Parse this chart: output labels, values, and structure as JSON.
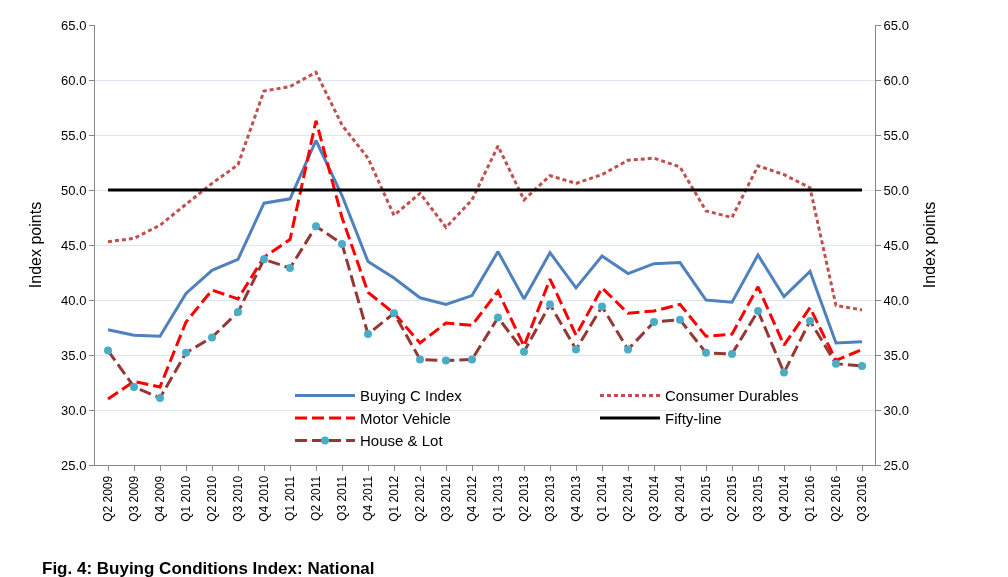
{
  "chart_data": {
    "type": "line",
    "annotations": [
      "Fig. 4: Buying Conditions Index: National"
    ],
    "ylabel": "Index points",
    "y2label": "Index points",
    "categories": [
      "Q2 2009",
      "Q3 2009",
      "Q4 2009",
      "Q1 2010",
      "Q2 2010",
      "Q3 2010",
      "Q4 2010",
      "Q1 2011",
      "Q2 2011",
      "Q3 2011",
      "Q4 2011",
      "Q1 2012",
      "Q2 2012",
      "Q3 2012",
      "Q4 2012",
      "Q1 2013",
      "Q2 2013",
      "Q3 2013",
      "Q4 2013",
      "Q1 2014",
      "Q2 2014",
      "Q3 2014",
      "Q4 2014",
      "Q1 2015",
      "Q2 2015",
      "Q3 2015",
      "Q4 2014",
      "Q1 2016",
      "Q2 2016",
      "Q3 2016"
    ],
    "ylim": [
      25,
      65
    ],
    "yticks": [
      {
        "value": 25,
        "label": "25.0"
      },
      {
        "value": 30,
        "label": "30.0"
      },
      {
        "value": 35,
        "label": "35.0"
      },
      {
        "value": 40,
        "label": "40.0"
      },
      {
        "value": 45,
        "label": "45.0"
      },
      {
        "value": 50,
        "label": "50.0"
      },
      {
        "value": 55,
        "label": "55.0"
      },
      {
        "value": 60,
        "label": "60.0"
      },
      {
        "value": 65,
        "label": "65.0"
      }
    ],
    "y2lim": [
      25,
      65
    ],
    "y2ticks": [
      {
        "value": 25,
        "label": "25.0"
      },
      {
        "value": 30,
        "label": "30.0"
      },
      {
        "value": 35,
        "label": "35.0"
      },
      {
        "value": 40,
        "label": "40.0"
      },
      {
        "value": 45,
        "label": "45.0"
      },
      {
        "value": 50,
        "label": "50.0"
      },
      {
        "value": 55,
        "label": "55.0"
      },
      {
        "value": 60,
        "label": "60.0"
      },
      {
        "value": 65,
        "label": "65.0"
      }
    ],
    "grid": "y",
    "legend": "bottom",
    "series": [
      {
        "name": "Buying C Index",
        "color": "#4f81bd",
        "line_style": "solid",
        "marker": "none",
        "values": [
          37.3,
          36.8,
          36.7,
          40.6,
          42.7,
          43.7,
          48.8,
          49.2,
          54.5,
          49.5,
          43.5,
          42.0,
          40.2,
          39.6,
          40.4,
          44.4,
          40.1,
          44.3,
          41.1,
          44.0,
          42.4,
          43.3,
          43.4,
          40.0,
          39.8,
          44.1,
          40.3,
          42.6,
          36.1,
          36.2
        ]
      },
      {
        "name": "Consumer Durables",
        "color": "#c0504d",
        "line_style": "dotted",
        "marker": "none",
        "values": [
          45.3,
          45.6,
          46.8,
          48.7,
          50.6,
          52.3,
          59.0,
          59.4,
          60.7,
          55.9,
          52.9,
          47.7,
          49.7,
          46.6,
          49.1,
          54.0,
          49.1,
          51.3,
          50.6,
          51.4,
          52.7,
          52.9,
          52.1,
          48.1,
          47.5,
          52.2,
          51.4,
          50.2,
          39.5,
          39.1
        ]
      },
      {
        "name": "Motor Vehicle",
        "color": "#ff0000",
        "line_style": "dashed",
        "marker": "none",
        "values": [
          31.0,
          32.6,
          32.1,
          38.0,
          40.9,
          40.1,
          43.9,
          45.5,
          56.3,
          47.5,
          40.7,
          38.8,
          36.1,
          37.9,
          37.7,
          40.8,
          35.8,
          41.9,
          36.8,
          41.1,
          38.8,
          39.0,
          39.6,
          36.7,
          36.9,
          41.2,
          35.9,
          39.3,
          34.5,
          35.5
        ]
      },
      {
        "name": "Fifty-line",
        "color": "#000000",
        "line_style": "solid",
        "marker": "none",
        "values": [
          50,
          50,
          50,
          50,
          50,
          50,
          50,
          50,
          50,
          50,
          50,
          50,
          50,
          50,
          50,
          50,
          50,
          50,
          50,
          50,
          50,
          50,
          50,
          50,
          50,
          50,
          50,
          50,
          50,
          50
        ]
      },
      {
        "name": "House & Lot",
        "color": "#953735",
        "colors": [
          "#4bacc6",
          "#4bacc6",
          "#4bacc6",
          "#4bacc6",
          "#4bacc6",
          "#4bacc6",
          "#4bacc6",
          "#4bacc6",
          "#4bacc6",
          "#4bacc6",
          "#4bacc6",
          "#4bacc6",
          "#4bacc6",
          "#4bacc6",
          "#4bacc6",
          "#4bacc6",
          "#4bacc6",
          "#4bacc6",
          "#4bacc6",
          "#4bacc6",
          "#4bacc6",
          "#4bacc6",
          "#4bacc6",
          "#4bacc6",
          "#4bacc6",
          "#4bacc6",
          "#4bacc6",
          "#4bacc6",
          "#4bacc6",
          "#4bacc6"
        ],
        "line_style": "dashed",
        "marker": "circle",
        "values": [
          35.4,
          32.1,
          31.1,
          35.2,
          36.6,
          38.9,
          43.7,
          42.9,
          46.7,
          45.1,
          36.9,
          38.8,
          34.6,
          34.5,
          34.6,
          38.4,
          35.3,
          39.6,
          35.5,
          39.4,
          35.5,
          38.0,
          38.2,
          35.2,
          35.1,
          39.0,
          33.4,
          38.1,
          34.2,
          34.0
        ]
      }
    ]
  }
}
